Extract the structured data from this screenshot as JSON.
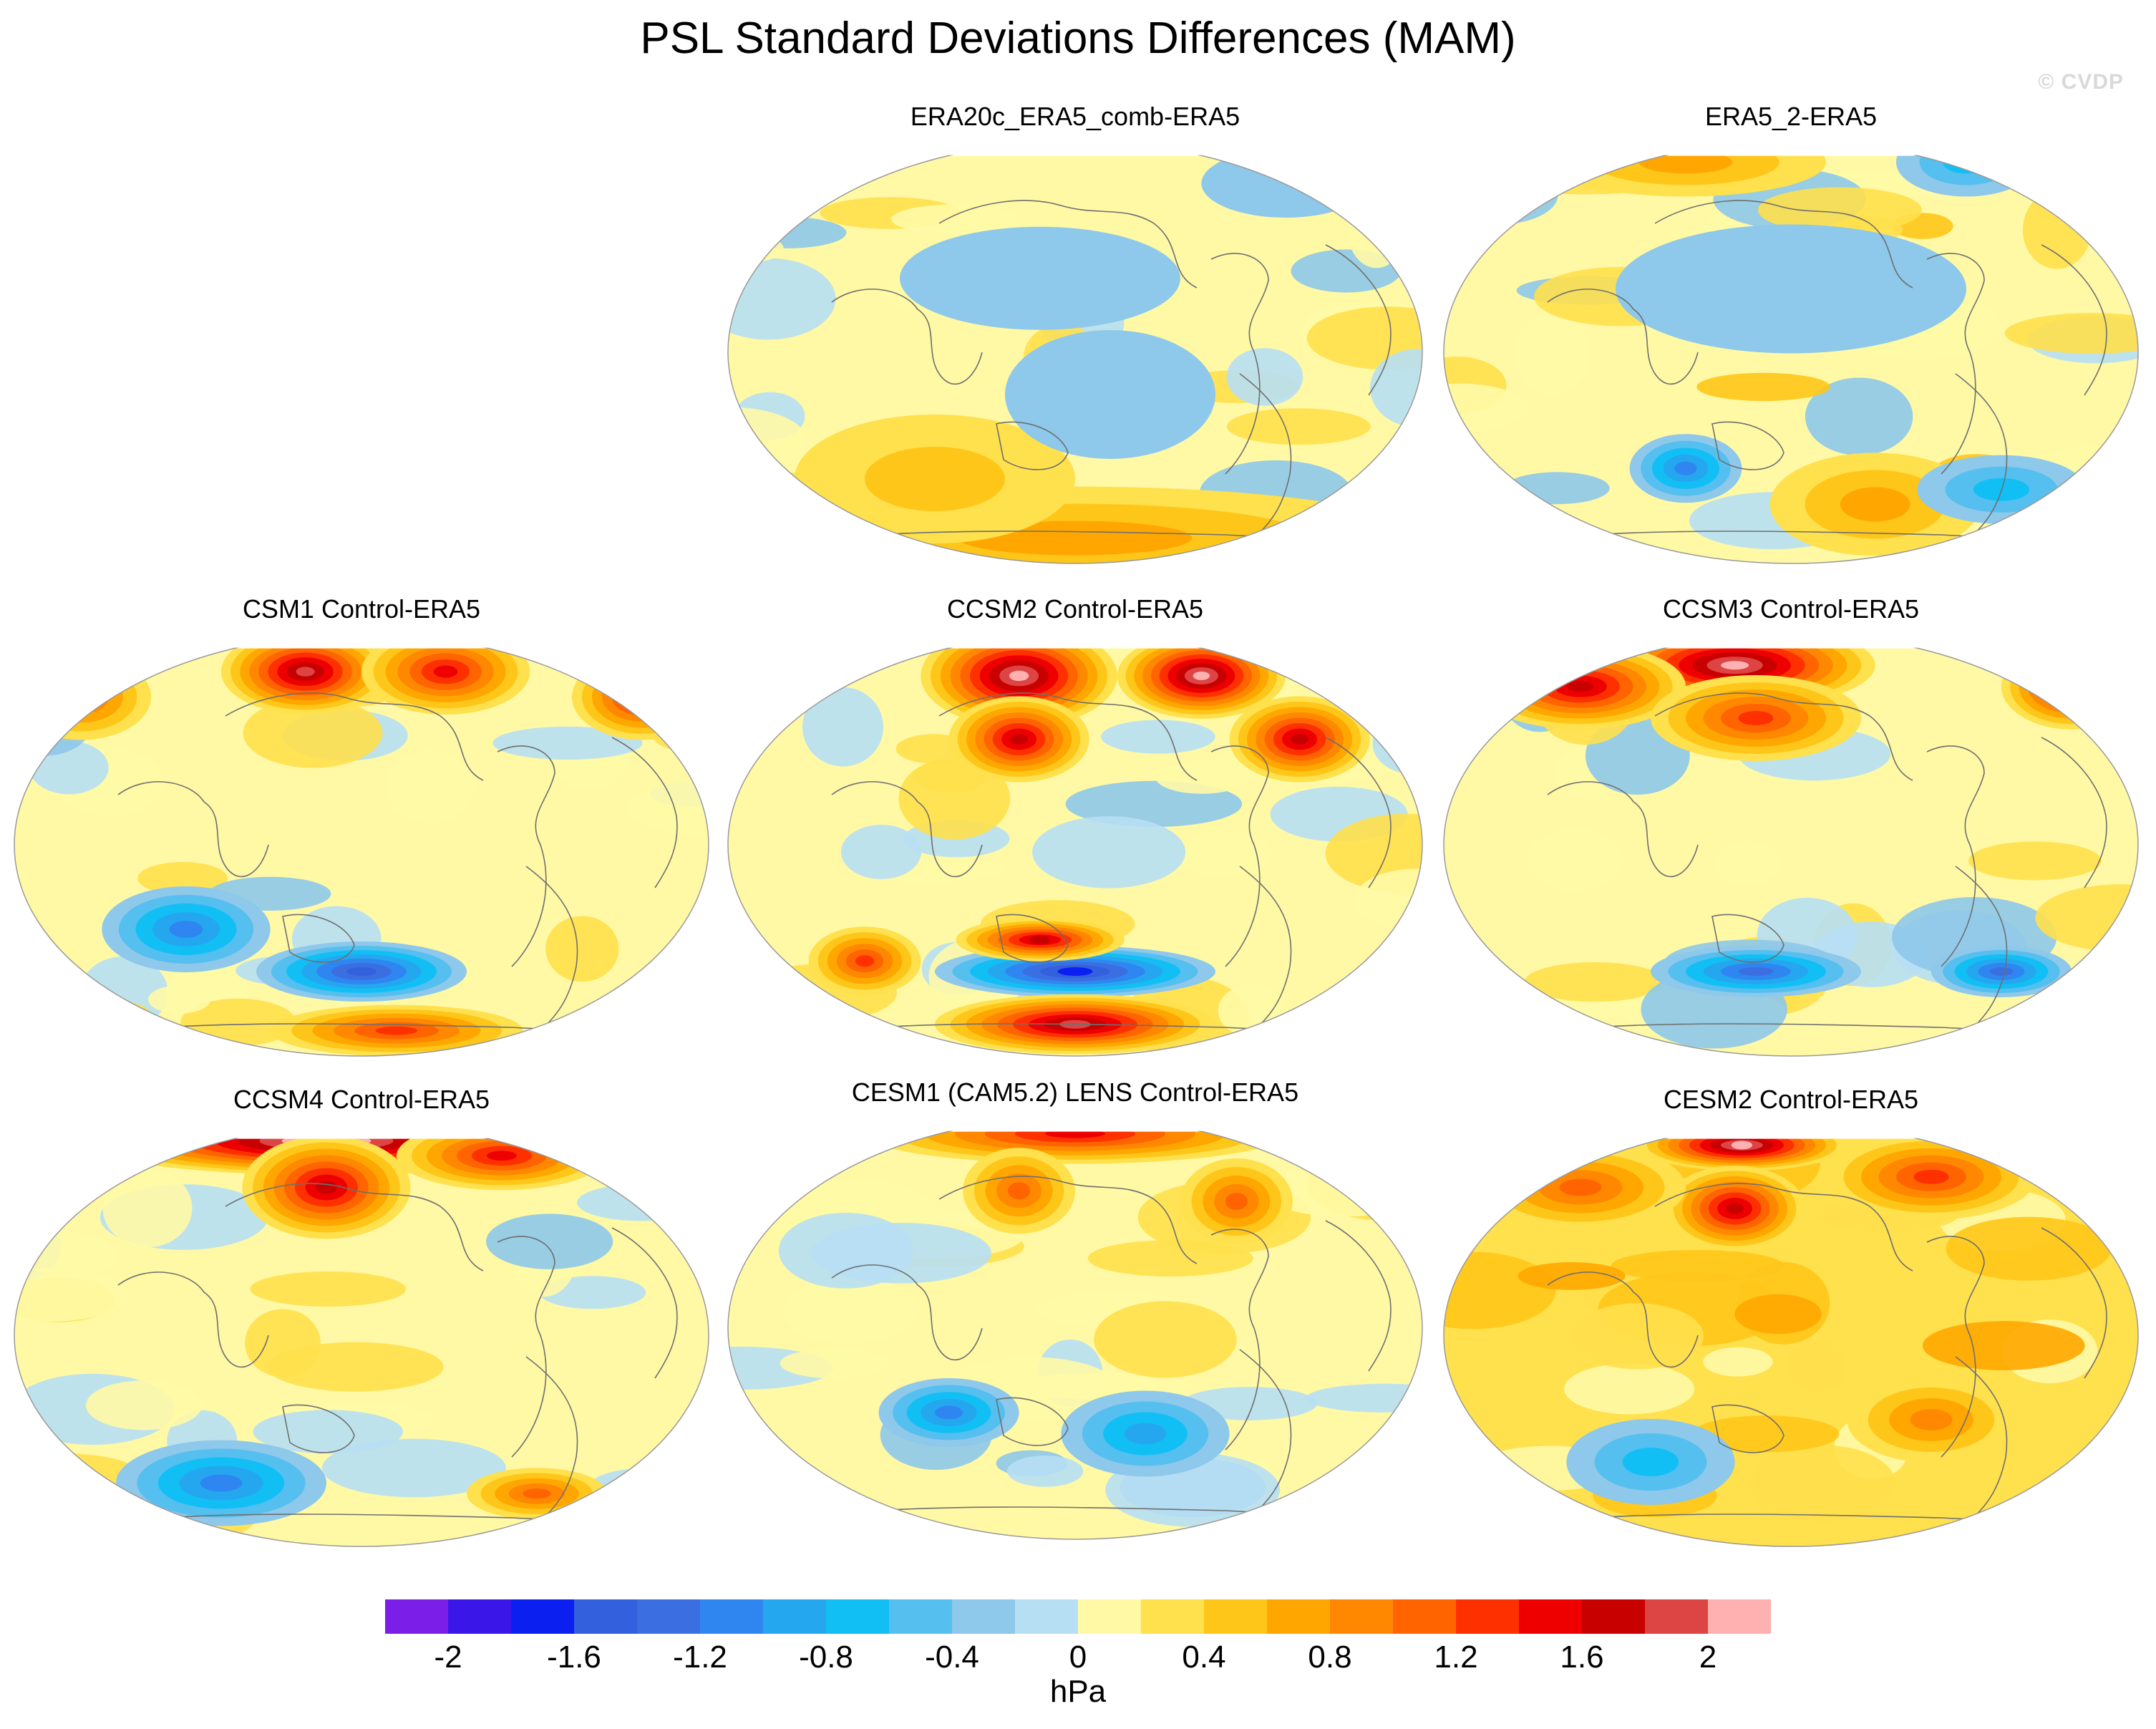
{
  "title": "PSL Standard Deviations Differences (MAM)",
  "watermark": "© CVDP",
  "panels": [
    {
      "id": "era20c",
      "label": "ERA20c_ERA5_comb-ERA5",
      "pattern": "mild-warm",
      "blobs": [
        {
          "lon": 0.5,
          "lat": -0.88,
          "w": 0.5,
          "h": 0.12,
          "level": 0.7
        },
        {
          "lon": 0.3,
          "lat": -0.6,
          "w": 0.2,
          "h": 0.15,
          "level": 0.4
        },
        {
          "lon": 0.45,
          "lat": 0.35,
          "w": 0.2,
          "h": 0.12,
          "level": -0.3
        },
        {
          "lon": 0.55,
          "lat": -0.2,
          "w": 0.15,
          "h": 0.15,
          "level": -0.3
        },
        {
          "lon": 0.8,
          "lat": 0.8,
          "w": 0.12,
          "h": 0.08,
          "level": -0.3
        }
      ]
    },
    {
      "id": "era5-2",
      "label": "ERA5_2-ERA5",
      "pattern": "mixed",
      "blobs": [
        {
          "lon": 0.35,
          "lat": -0.55,
          "w": 0.08,
          "h": 0.08,
          "level": -0.9
        },
        {
          "lon": 0.62,
          "lat": -0.72,
          "w": 0.15,
          "h": 0.12,
          "level": 0.6
        },
        {
          "lon": 0.75,
          "lat": 0.9,
          "w": 0.1,
          "h": 0.08,
          "level": -0.6
        },
        {
          "lon": 0.35,
          "lat": 0.9,
          "w": 0.2,
          "h": 0.08,
          "level": 0.5
        },
        {
          "lon": 0.8,
          "lat": -0.65,
          "w": 0.12,
          "h": 0.08,
          "level": -0.7
        },
        {
          "lon": 0.5,
          "lat": 0.3,
          "w": 0.25,
          "h": 0.15,
          "level": -0.3
        }
      ]
    },
    {
      "id": "csm1",
      "label": "CSM1 Control-ERA5",
      "pattern": "north-warm",
      "blobs": [
        {
          "lon": 0.42,
          "lat": 0.82,
          "w": 0.12,
          "h": 0.1,
          "level": 1.9
        },
        {
          "lon": 0.62,
          "lat": 0.82,
          "w": 0.12,
          "h": 0.1,
          "level": 1.3
        },
        {
          "lon": 0.9,
          "lat": 0.7,
          "w": 0.1,
          "h": 0.1,
          "level": 1.3
        },
        {
          "lon": 0.1,
          "lat": 0.7,
          "w": 0.1,
          "h": 0.1,
          "level": 1.0
        },
        {
          "lon": 0.5,
          "lat": -0.6,
          "w": 0.15,
          "h": 0.07,
          "level": -1.4
        },
        {
          "lon": 0.25,
          "lat": -0.4,
          "w": 0.12,
          "h": 0.1,
          "level": -0.9
        },
        {
          "lon": 0.55,
          "lat": -0.88,
          "w": 0.18,
          "h": 0.06,
          "level": 1.1
        }
      ]
    },
    {
      "id": "ccsm2",
      "label": "CCSM2 Control-ERA5",
      "pattern": "north-warm",
      "blobs": [
        {
          "lon": 0.42,
          "lat": 0.8,
          "w": 0.14,
          "h": 0.12,
          "level": 2.0
        },
        {
          "lon": 0.68,
          "lat": 0.8,
          "w": 0.12,
          "h": 0.1,
          "level": 2.0
        },
        {
          "lon": 0.42,
          "lat": 0.5,
          "w": 0.1,
          "h": 0.1,
          "level": 1.6
        },
        {
          "lon": 0.82,
          "lat": 0.5,
          "w": 0.1,
          "h": 0.1,
          "level": 1.6
        },
        {
          "lon": 0.5,
          "lat": -0.6,
          "w": 0.2,
          "h": 0.06,
          "level": -1.5
        },
        {
          "lon": 0.45,
          "lat": -0.45,
          "w": 0.12,
          "h": 0.05,
          "level": 1.6
        },
        {
          "lon": 0.5,
          "lat": -0.85,
          "w": 0.2,
          "h": 0.07,
          "level": 1.7
        },
        {
          "lon": 0.2,
          "lat": -0.55,
          "w": 0.08,
          "h": 0.08,
          "level": 1.2
        }
      ]
    },
    {
      "id": "ccsm3",
      "label": "CCSM3 Control-ERA5",
      "pattern": "north-warm",
      "blobs": [
        {
          "lon": 0.42,
          "lat": 0.85,
          "w": 0.2,
          "h": 0.1,
          "level": 2.0
        },
        {
          "lon": 0.2,
          "lat": 0.75,
          "w": 0.15,
          "h": 0.1,
          "level": 1.5
        },
        {
          "lon": 0.9,
          "lat": 0.75,
          "w": 0.1,
          "h": 0.1,
          "level": 1.6
        },
        {
          "lon": 0.45,
          "lat": 0.6,
          "w": 0.15,
          "h": 0.1,
          "level": 1.2
        },
        {
          "lon": 0.45,
          "lat": -0.6,
          "w": 0.15,
          "h": 0.06,
          "level": -1.2
        },
        {
          "lon": 0.8,
          "lat": -0.6,
          "w": 0.1,
          "h": 0.06,
          "level": -1.2
        }
      ]
    },
    {
      "id": "ccsm4",
      "label": "CCSM4 Control-ERA5",
      "pattern": "north-warm",
      "blobs": [
        {
          "lon": 0.45,
          "lat": 0.92,
          "w": 0.35,
          "h": 0.08,
          "level": 2.1
        },
        {
          "lon": 0.45,
          "lat": 0.7,
          "w": 0.12,
          "h": 0.12,
          "level": 1.5
        },
        {
          "lon": 0.7,
          "lat": 0.85,
          "w": 0.15,
          "h": 0.08,
          "level": 1.3
        },
        {
          "lon": 0.3,
          "lat": -0.7,
          "w": 0.15,
          "h": 0.1,
          "level": -0.9
        },
        {
          "lon": 0.75,
          "lat": -0.75,
          "w": 0.1,
          "h": 0.06,
          "level": 0.9
        }
      ]
    },
    {
      "id": "cesm1",
      "label": "CESM1 (CAM5.2) LENS Control-ERA5",
      "pattern": "mild-warm",
      "blobs": [
        {
          "lon": 0.5,
          "lat": 0.92,
          "w": 0.3,
          "h": 0.07,
          "level": 1.3
        },
        {
          "lon": 0.42,
          "lat": 0.65,
          "w": 0.08,
          "h": 0.1,
          "level": 1.0
        },
        {
          "lon": 0.73,
          "lat": 0.6,
          "w": 0.08,
          "h": 0.1,
          "level": 0.9
        },
        {
          "lon": 0.32,
          "lat": -0.4,
          "w": 0.1,
          "h": 0.08,
          "level": -0.9
        },
        {
          "lon": 0.6,
          "lat": -0.5,
          "w": 0.12,
          "h": 0.1,
          "level": -0.8
        }
      ]
    },
    {
      "id": "cesm2",
      "label": "CESM2 Control-ERA5",
      "pattern": "warm",
      "blobs": [
        {
          "lon": 0.43,
          "lat": 0.9,
          "w": 0.15,
          "h": 0.06,
          "level": 2.0
        },
        {
          "lon": 0.42,
          "lat": 0.6,
          "w": 0.1,
          "h": 0.1,
          "level": 1.6
        },
        {
          "lon": 0.7,
          "lat": 0.75,
          "w": 0.15,
          "h": 0.1,
          "level": 1.1
        },
        {
          "lon": 0.2,
          "lat": 0.7,
          "w": 0.15,
          "h": 0.1,
          "level": 1.0
        },
        {
          "lon": 0.3,
          "lat": -0.6,
          "w": 0.12,
          "h": 0.1,
          "level": -0.5
        },
        {
          "lon": 0.7,
          "lat": -0.4,
          "w": 0.12,
          "h": 0.1,
          "level": 0.8
        }
      ]
    }
  ],
  "colorbar": {
    "units": "hPa",
    "levels": [
      -2.2,
      -2.0,
      -1.8,
      -1.6,
      -1.4,
      -1.2,
      -1.0,
      -0.8,
      -0.6,
      -0.4,
      -0.2,
      0.0,
      0.2,
      0.4,
      0.6,
      0.8,
      1.0,
      1.2,
      1.4,
      1.6,
      1.8,
      2.0,
      2.2
    ],
    "colors": [
      "#7b1fe8",
      "#3b16e8",
      "#0a1ff0",
      "#3360dd",
      "#3b6ee0",
      "#2f86f0",
      "#25a7f0",
      "#12bff5",
      "#55bfef",
      "#8ec8ea",
      "#b7dff4",
      "#fff9a6",
      "#ffe04d",
      "#ffc61a",
      "#ffa700",
      "#ff8800",
      "#ff6400",
      "#ff3000",
      "#ee0000",
      "#c80000",
      "#dd4444",
      "#ffb0b0"
    ],
    "tick_labels": [
      "-2",
      "-1.6",
      "-1.2",
      "-0.8",
      "-0.4",
      "0",
      "0.4",
      "0.8",
      "1.2",
      "1.6",
      "2"
    ]
  }
}
